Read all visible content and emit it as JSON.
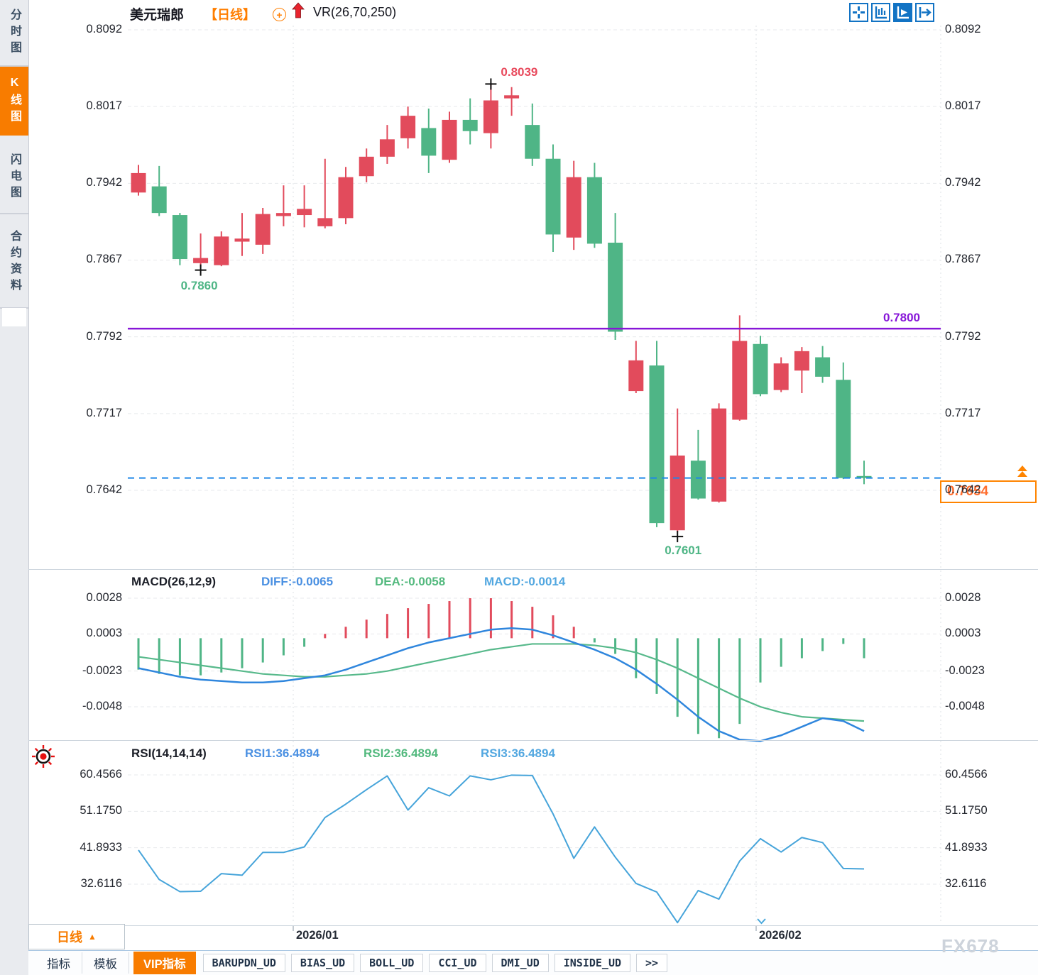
{
  "header": {
    "symbol": "美元瑞郎",
    "period_tag": "【日线】",
    "indicator_label": "VR(26,70,250)"
  },
  "toolbar": {
    "icons": [
      "crosshair-move-icon",
      "axis-scale-icon",
      "axis-play-icon",
      "pan-right-icon"
    ]
  },
  "sidebar": {
    "items": [
      {
        "label": "分时图",
        "active": false
      },
      {
        "label": "K线图",
        "active": true
      },
      {
        "label": "闪电图",
        "active": false
      },
      {
        "label": "合约资料",
        "active": false
      }
    ]
  },
  "main_chart": {
    "y_axis_labels": [
      "0.8092",
      "0.8017",
      "0.7942",
      "0.7867",
      "0.7792",
      "0.7717",
      "0.7642"
    ],
    "annotations": {
      "high": "0.8039",
      "swing_low": "0.7860",
      "low": "0.7601",
      "hline_label": "0.7800",
      "last_price": "0.7654"
    }
  },
  "macd_panel": {
    "title": "MACD(26,12,9)",
    "diff_label": "DIFF:-0.0065",
    "dea_label": "DEA:-0.0058",
    "macd_label": "MACD:-0.0014",
    "y_axis_labels": [
      "0.0028",
      "0.0003",
      "-0.0023",
      "-0.0048"
    ]
  },
  "rsi_panel": {
    "title": "RSI(14,14,14)",
    "rsi1_label": "RSI1:36.4894",
    "rsi2_label": "RSI2:36.4894",
    "rsi3_label": "RSI3:36.4894",
    "y_axis_labels": [
      "60.4566",
      "51.1750",
      "41.8933",
      "32.6116"
    ]
  },
  "x_axis": {
    "labels": [
      "2026/01",
      "2026/02"
    ]
  },
  "period_button": {
    "label": "日线",
    "arrow": "▲"
  },
  "bottom_tabs": {
    "items": [
      {
        "label": "指标"
      },
      {
        "label": "模板"
      },
      {
        "label": "VIP指标"
      },
      {
        "label": "BARUPDN_UD"
      },
      {
        "label": "BIAS_UD"
      },
      {
        "label": "BOLL_UD"
      },
      {
        "label": "CCI_UD"
      },
      {
        "label": "DMI_UD"
      },
      {
        "label": "INSIDE_UD"
      },
      {
        "label": ">>"
      }
    ]
  },
  "watermark": "FX678",
  "colors": {
    "up": "#e24b5c",
    "down": "#4fb586",
    "support_line": "#8716d8",
    "last_price_line": "#1f86e8",
    "accent_orange": "#ff7e00",
    "diff_line": "#2f86dd",
    "dea_line": "#57b98b",
    "rsi_line": "#46a4da",
    "axis_text": "#23262e",
    "grid": "#e7e9ec"
  },
  "chart_data": [
    {
      "type": "candlestick",
      "title": "美元瑞郎 日线 VR(26,70,250)",
      "ylim": [
        0.7596,
        0.8095
      ],
      "y_ticks": [
        0.8092,
        0.8017,
        0.7942,
        0.7867,
        0.7792,
        0.7717,
        0.7642
      ],
      "x_gridlines": [
        {
          "label": "2026/01",
          "x_frac": 0.2035
        },
        {
          "label": "2026/02",
          "x_frac": 0.7729
        }
      ],
      "support_line": 0.78,
      "last_price": 0.7654,
      "high_marker": {
        "index": 17,
        "price": 0.8039
      },
      "low_marker": {
        "index": 26,
        "price": 0.7601
      },
      "swing_low_marker": {
        "index": 3,
        "price": 0.786
      },
      "candles": [
        [
          0.7933,
          0.796,
          0.793,
          0.7952
        ],
        [
          0.7939,
          0.7959,
          0.791,
          0.7913
        ],
        [
          0.7911,
          0.7913,
          0.7862,
          0.7868
        ],
        [
          0.7864,
          0.7893,
          0.786,
          0.7869
        ],
        [
          0.7862,
          0.7895,
          0.7861,
          0.789
        ],
        [
          0.7885,
          0.7913,
          0.7871,
          0.7888
        ],
        [
          0.7882,
          0.7918,
          0.7873,
          0.7912
        ],
        [
          0.791,
          0.794,
          0.79,
          0.7913
        ],
        [
          0.7911,
          0.794,
          0.7899,
          0.7917
        ],
        [
          0.79,
          0.7966,
          0.7898,
          0.7908
        ],
        [
          0.7908,
          0.7958,
          0.7902,
          0.7948
        ],
        [
          0.7949,
          0.7976,
          0.7943,
          0.7968
        ],
        [
          0.7968,
          0.7999,
          0.7961,
          0.7985
        ],
        [
          0.7986,
          0.8017,
          0.7976,
          0.8008
        ],
        [
          0.7996,
          0.8015,
          0.7952,
          0.7969
        ],
        [
          0.7965,
          0.8012,
          0.7962,
          0.8004
        ],
        [
          0.8004,
          0.8025,
          0.798,
          0.7993
        ],
        [
          0.7991,
          0.8039,
          0.7976,
          0.8023
        ],
        [
          0.8025,
          0.8036,
          0.8008,
          0.8028
        ],
        [
          0.7999,
          0.802,
          0.7959,
          0.7966
        ],
        [
          0.7966,
          0.798,
          0.7875,
          0.7892
        ],
        [
          0.7889,
          0.7964,
          0.7877,
          0.7948
        ],
        [
          0.7948,
          0.7962,
          0.7879,
          0.7883
        ],
        [
          0.7884,
          0.7913,
          0.7789,
          0.7797
        ],
        [
          0.7739,
          0.7788,
          0.7737,
          0.7769
        ],
        [
          0.7764,
          0.7788,
          0.7606,
          0.761
        ],
        [
          0.7603,
          0.7722,
          0.7601,
          0.7676
        ],
        [
          0.7671,
          0.7701,
          0.7633,
          0.7634
        ],
        [
          0.7631,
          0.7727,
          0.763,
          0.7722
        ],
        [
          0.7711,
          0.7813,
          0.771,
          0.7788
        ],
        [
          0.7785,
          0.7793,
          0.7734,
          0.7736
        ],
        [
          0.774,
          0.7772,
          0.7738,
          0.7766
        ],
        [
          0.7759,
          0.7782,
          0.7737,
          0.7778
        ],
        [
          0.7772,
          0.7783,
          0.7747,
          0.7753
        ],
        [
          0.775,
          0.7767,
          0.7653,
          0.7654
        ],
        [
          0.7656,
          0.7671,
          0.7648,
          0.7654
        ]
      ]
    },
    {
      "type": "bar",
      "title": "MACD(26,12,9)",
      "y_ticks": [
        0.0028,
        0.0003,
        -0.0023,
        -0.0048
      ],
      "diff_last": -0.0065,
      "dea_last": -0.0058,
      "macd_last": -0.0014,
      "series": [
        {
          "name": "DIFF",
          "values": [
            -0.0021,
            -0.0024,
            -0.0027,
            -0.0029,
            -0.003,
            -0.0031,
            -0.0031,
            -0.003,
            -0.0028,
            -0.0026,
            -0.0022,
            -0.0017,
            -0.0012,
            -0.0007,
            -0.0003,
            0.0,
            0.0003,
            0.0006,
            0.0007,
            0.0006,
            0.0002,
            -0.0003,
            -0.0008,
            -0.0014,
            -0.0022,
            -0.0032,
            -0.0043,
            -0.0055,
            -0.0065,
            -0.0071,
            -0.0072,
            -0.0068,
            -0.0062,
            -0.0056,
            -0.0058,
            -0.0065
          ]
        },
        {
          "name": "DEA",
          "values": [
            -0.0013,
            -0.0015,
            -0.0017,
            -0.0019,
            -0.0021,
            -0.0023,
            -0.0025,
            -0.0026,
            -0.0027,
            -0.0027,
            -0.0026,
            -0.0025,
            -0.0023,
            -0.002,
            -0.0017,
            -0.0014,
            -0.0011,
            -0.0008,
            -0.0006,
            -0.0004,
            -0.0004,
            -0.0004,
            -0.0005,
            -0.0007,
            -0.001,
            -0.0015,
            -0.0021,
            -0.0028,
            -0.0035,
            -0.0042,
            -0.0048,
            -0.0052,
            -0.0055,
            -0.0056,
            -0.0057,
            -0.0058
          ]
        },
        {
          "name": "MACD_HIST",
          "values": [
            -0.0022,
            -0.0025,
            -0.0026,
            -0.0026,
            -0.0024,
            -0.0021,
            -0.0017,
            -0.0012,
            -0.0006,
            0.0003,
            0.0008,
            0.0013,
            0.0017,
            0.0021,
            0.0024,
            0.0026,
            0.0028,
            0.0028,
            0.0026,
            0.0022,
            0.0016,
            0.0008,
            -0.0003,
            -0.0011,
            -0.0028,
            -0.0039,
            -0.0055,
            -0.0067,
            -0.007,
            -0.006,
            -0.0031,
            -0.002,
            -0.0014,
            -0.0009,
            -0.0004,
            -0.0014
          ]
        }
      ]
    },
    {
      "type": "line",
      "title": "RSI(14,14,14)",
      "y_ticks": [
        60.4566,
        51.175,
        41.8933,
        32.6116
      ],
      "last_value": 36.4894,
      "values": [
        41.3,
        33.8,
        30.7,
        30.8,
        35.3,
        34.9,
        40.7,
        40.7,
        42.1,
        49.6,
        53.0,
        56.7,
        60.2,
        51.5,
        57.2,
        55.1,
        60.2,
        59.2,
        60.4,
        60.3,
        50.5,
        39.2,
        47.2,
        39.5,
        32.8,
        30.6,
        22.8,
        31.0,
        28.8,
        38.5,
        44.2,
        40.8,
        44.5,
        43.2,
        36.6,
        36.49
      ]
    }
  ]
}
